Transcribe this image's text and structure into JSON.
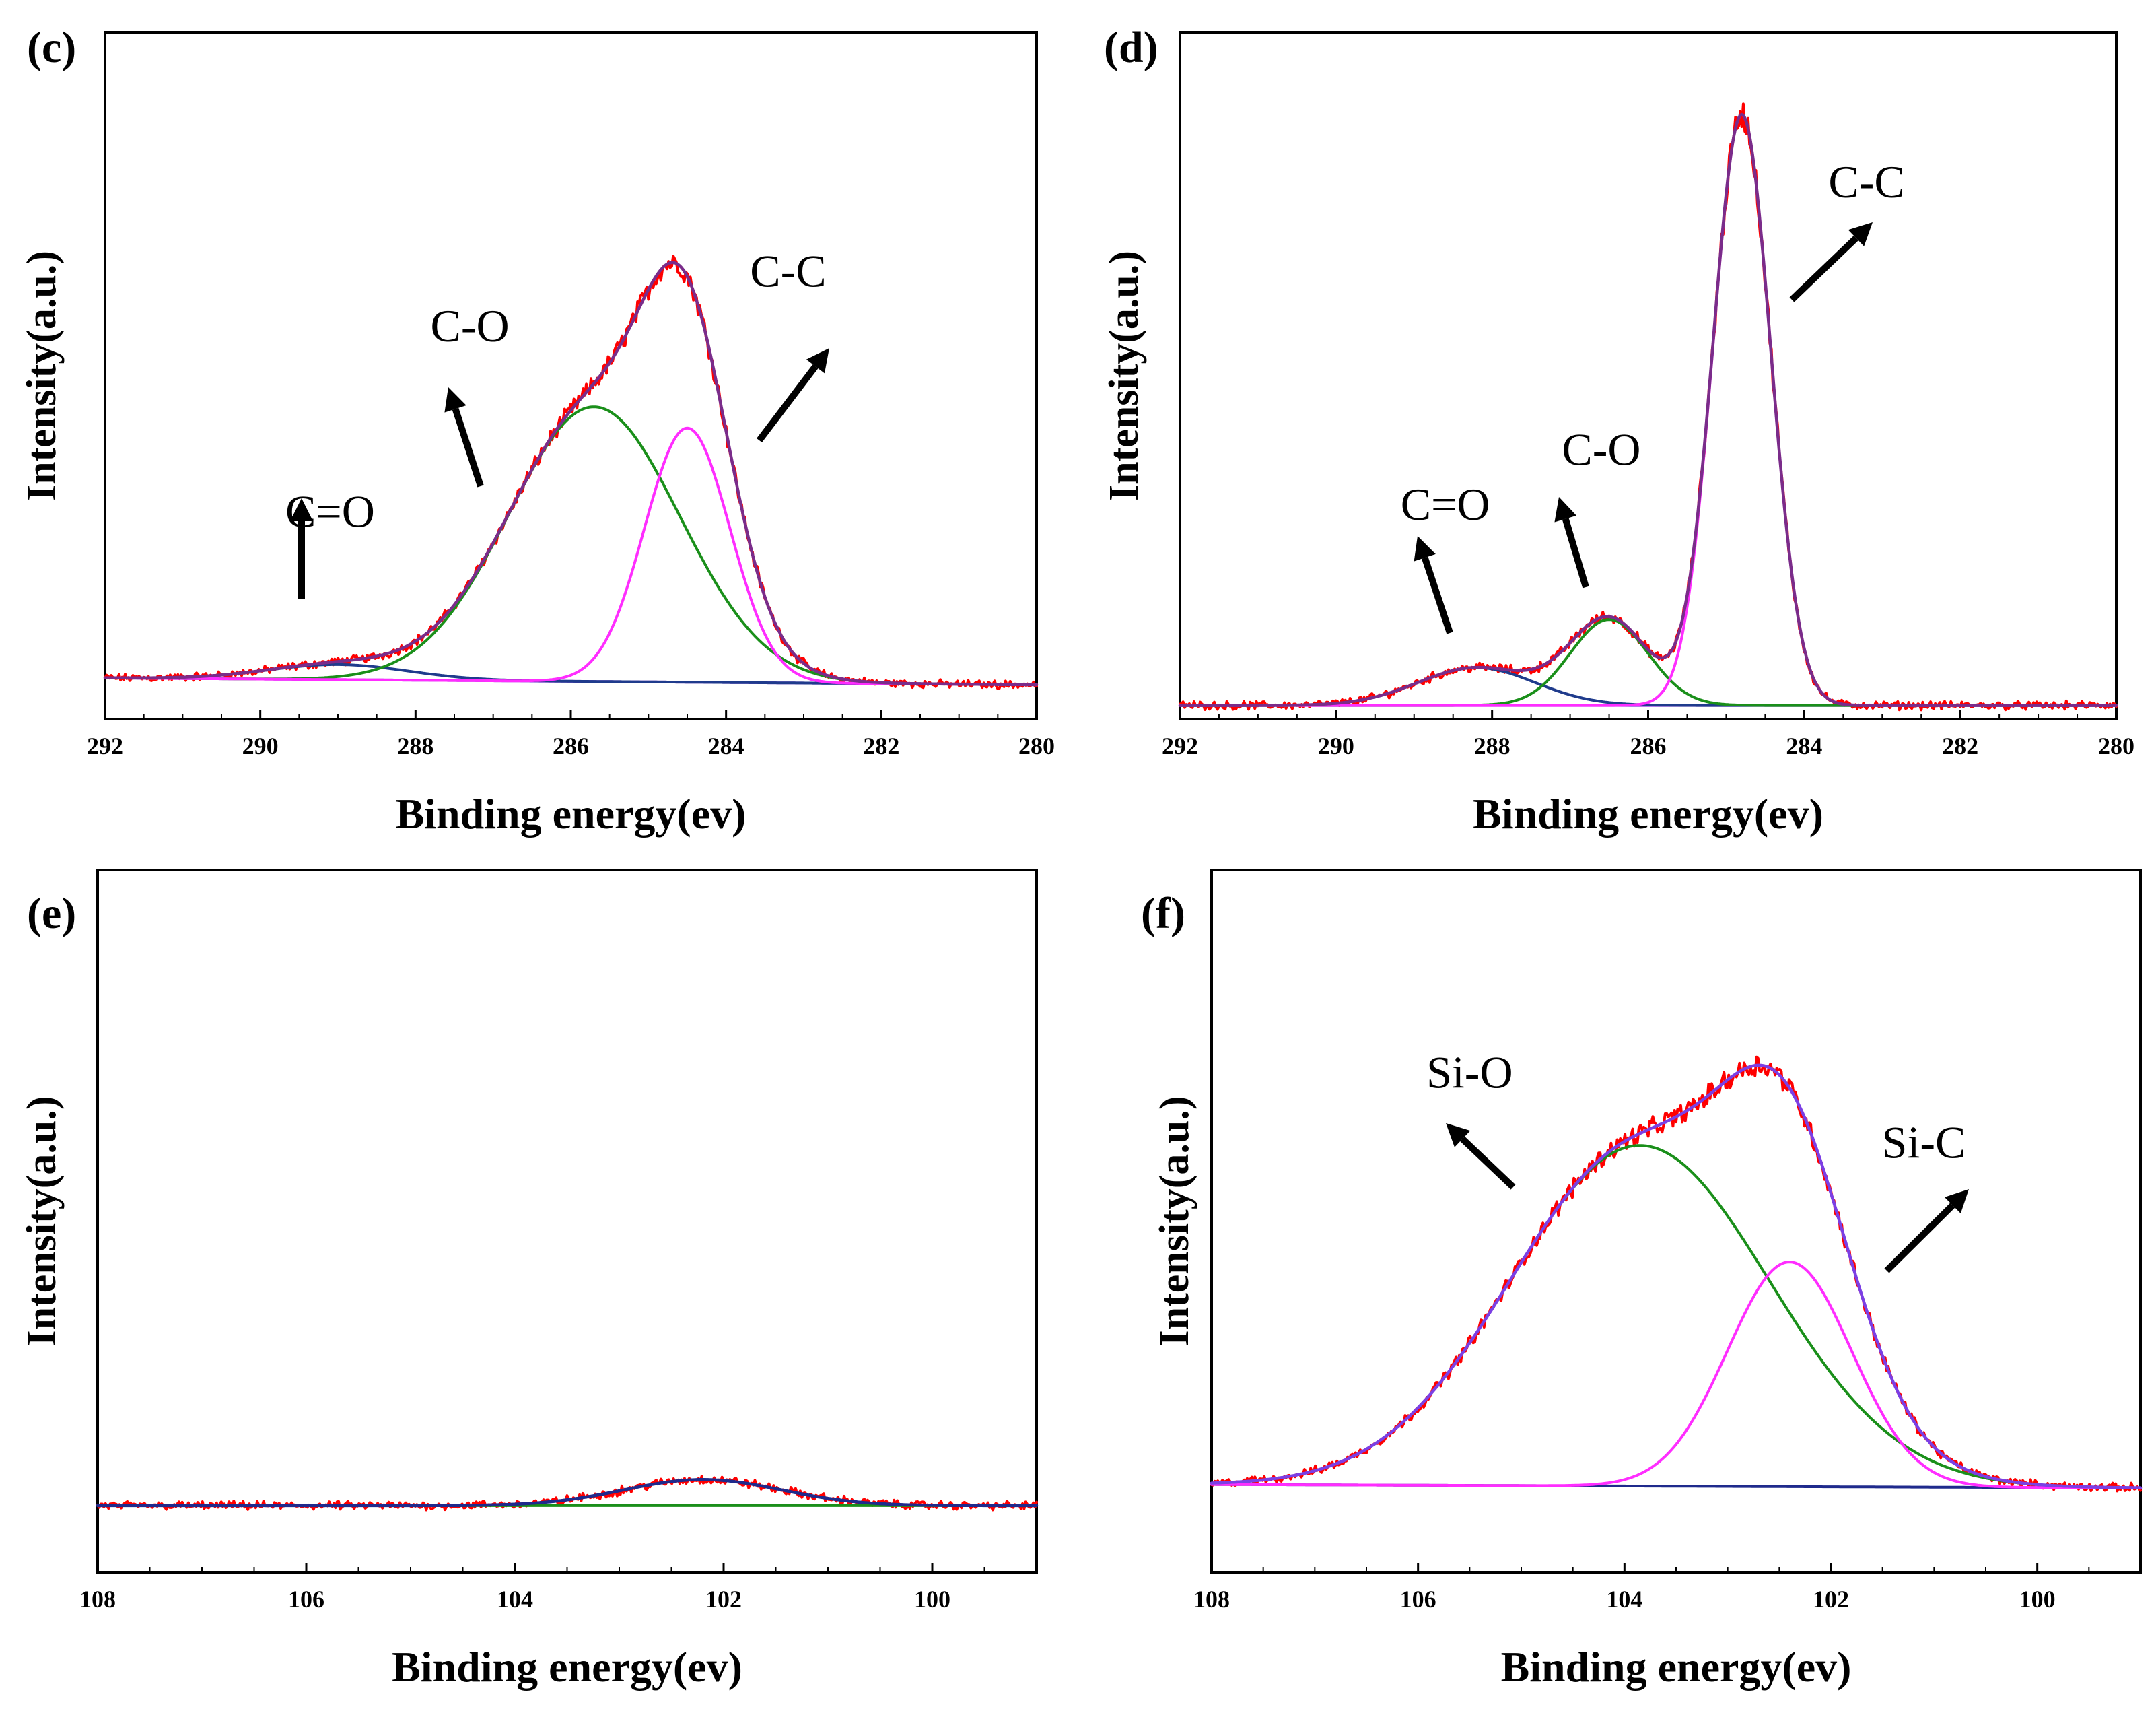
{
  "chart_data": [
    {
      "type": "line",
      "panel_label": "(c)",
      "xlabel": "Binding energy(ev)",
      "ylabel": "Intensity(a.u.)",
      "xlim": [
        292,
        280
      ],
      "ylim": [
        0,
        1
      ],
      "xticks": [
        "292",
        "290",
        "288",
        "286",
        "284",
        "282",
        "280"
      ],
      "baseline": [
        0.06,
        0.05
      ],
      "components": [
        {
          "name": "C=O",
          "center": 289.0,
          "height": 0.022,
          "width": 0.9
        },
        {
          "name": "C-O",
          "center": 285.7,
          "height": 0.4,
          "width": 1.1
        },
        {
          "name": "C-C",
          "center": 284.5,
          "height": 0.37,
          "width": 0.55
        }
      ],
      "series": [
        {
          "name": "raw",
          "color": "#ff0000"
        },
        {
          "name": "envelope",
          "color": "#7a2c8a"
        },
        {
          "name": "baseline",
          "color": "#8a2be2"
        },
        {
          "name": "C=O",
          "color": "#1f3b8c"
        },
        {
          "name": "C-O",
          "color": "#1a8f1a"
        },
        {
          "name": "C-C",
          "color": "#ff2dff"
        }
      ],
      "annotations": [
        {
          "text": "C=O",
          "x": 289.1,
          "y": 0.28
        },
        {
          "text": "C-O",
          "x": 287.3,
          "y": 0.55
        },
        {
          "text": "C-C",
          "x": 283.2,
          "y": 0.63
        }
      ]
    },
    {
      "type": "line",
      "panel_label": "(d)",
      "xlabel": "Binding energy(ev)",
      "ylabel": "Intensity(a.u.)",
      "xlim": [
        292,
        280
      ],
      "ylim": [
        0,
        1
      ],
      "xticks": [
        "292",
        "290",
        "288",
        "286",
        "284",
        "282",
        "280"
      ],
      "baseline": [
        0.02,
        0.02
      ],
      "components": [
        {
          "name": "C=O",
          "center": 288.2,
          "height": 0.055,
          "width": 0.75
        },
        {
          "name": "C-O",
          "center": 286.5,
          "height": 0.125,
          "width": 0.5
        },
        {
          "name": "C-C",
          "center": 284.8,
          "height": 0.86,
          "width": 0.37
        }
      ],
      "series": [
        {
          "name": "raw",
          "color": "#ff0000"
        },
        {
          "name": "envelope",
          "color": "#7a2c8a"
        },
        {
          "name": "baseline",
          "color": "#8a2be2"
        },
        {
          "name": "C=O",
          "color": "#1f3b8c"
        },
        {
          "name": "C-O",
          "color": "#1a8f1a"
        },
        {
          "name": "C-C",
          "color": "#ff2dff"
        }
      ],
      "annotations": [
        {
          "text": "C=O",
          "x": 288.6,
          "y": 0.29
        },
        {
          "text": "C-O",
          "x": 286.6,
          "y": 0.37
        },
        {
          "text": "C-C",
          "x": 283.2,
          "y": 0.76
        }
      ]
    },
    {
      "type": "line",
      "panel_label": "(e)",
      "xlabel": "Binding energy(ev)",
      "ylabel": "Intensity(a.u.)",
      "xlim": [
        108,
        99
      ],
      "ylim": [
        0,
        1
      ],
      "xticks": [
        "108",
        "106",
        "104",
        "102",
        "100"
      ],
      "baseline": [
        0.095,
        0.095
      ],
      "components": [
        {
          "name": "Si",
          "center": 102.2,
          "height": 0.037,
          "width": 0.75
        }
      ],
      "series": [
        {
          "name": "raw",
          "color": "#ff0000"
        },
        {
          "name": "envelope",
          "color": "#1f2a8c"
        },
        {
          "name": "baseline",
          "color": "#1a8f1a"
        }
      ],
      "annotations": []
    },
    {
      "type": "line",
      "panel_label": "(f)",
      "xlabel": "Binding energy(ev)",
      "ylabel": "Intensity(a.u.)",
      "xlim": [
        108,
        99
      ],
      "ylim": [
        0,
        1
      ],
      "xticks": [
        "108",
        "106",
        "104",
        "102",
        "100"
      ],
      "baseline": [
        0.125,
        0.12
      ],
      "components": [
        {
          "name": "Si-O",
          "center": 103.85,
          "height": 0.485,
          "width": 1.25
        },
        {
          "name": "Si-C",
          "center": 102.4,
          "height": 0.32,
          "width": 0.6
        }
      ],
      "series": [
        {
          "name": "raw",
          "color": "#ff0000"
        },
        {
          "name": "envelope",
          "color": "#7b3fe4"
        },
        {
          "name": "baseline",
          "color": "#1f2a8c"
        },
        {
          "name": "Si-O",
          "color": "#1a8f1a"
        },
        {
          "name": "Si-C",
          "color": "#ff2dff"
        }
      ],
      "annotations": [
        {
          "text": "Si-O",
          "x": 105.5,
          "y": 0.69
        },
        {
          "text": "Si-C",
          "x": 101.1,
          "y": 0.59
        }
      ]
    }
  ]
}
